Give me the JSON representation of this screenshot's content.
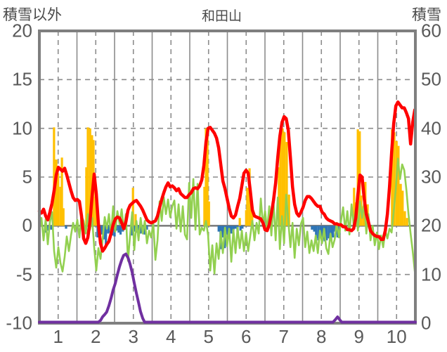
{
  "header": {
    "left_label": "積雪以外",
    "title": "和田山",
    "right_label": "積雪"
  },
  "chart_data": {
    "type": "line",
    "title": "和田山",
    "left_axis": {
      "label": "積雪以外",
      "ticks": [
        "20",
        "15",
        "10",
        "5",
        "0",
        "-5",
        "-10"
      ],
      "tick_values": [
        20,
        15,
        10,
        5,
        0,
        -5,
        -10
      ],
      "range": [
        -10,
        20
      ]
    },
    "right_axis": {
      "label": "積雪",
      "ticks": [
        "60",
        "50",
        "40",
        "30",
        "20",
        "10",
        "0"
      ],
      "tick_values": [
        60,
        50,
        40,
        30,
        20,
        10,
        0
      ],
      "range": [
        0,
        60
      ]
    },
    "x_axis": {
      "ticks": [
        "1",
        "2",
        "3",
        "4",
        "5",
        "6",
        "7",
        "8",
        "9",
        "10"
      ],
      "tick_positions": [
        0.5,
        1.5,
        2.5,
        3.5,
        4.5,
        5.5,
        6.5,
        7.5,
        8.5,
        9.5
      ],
      "range": [
        0,
        10
      ]
    },
    "grid": {
      "h_dashed_levels": [
        15,
        10,
        5,
        -5
      ],
      "zero_level": 0,
      "v_solid_months": [
        1,
        2,
        3,
        4,
        5,
        6,
        7,
        8,
        9
      ],
      "v_dashed_months": [
        0.5,
        1.5,
        2.5,
        3.5,
        4.5,
        5.5,
        6.5,
        7.5,
        8.5,
        9.5
      ]
    },
    "colors": {
      "red_line": "#FF0000",
      "green_line": "#92D050",
      "orange_bars": "#FFC000",
      "blue_bars": "#2E75B6",
      "purple_line": "#7030A0",
      "grid": "#8C8C8C",
      "border": "#7F7F7F",
      "tick_text": "#595959",
      "title_text": "#4A4A4A"
    },
    "series": [
      {
        "name": "red-line",
        "type": "line",
        "axis": "left",
        "color": "#FF0000",
        "stroke_width": 4.5,
        "x_start": 0,
        "x_step": 0.0561,
        "values": [
          1.5,
          1.3,
          1.7,
          1.0,
          0.6,
          1.4,
          2.3,
          3.6,
          5.2,
          6.0,
          5.8,
          5.6,
          5.9,
          5.2,
          4.4,
          3.6,
          2.9,
          2.6,
          2.7,
          2.5,
          1.0,
          -1.3,
          -1.8,
          -1.2,
          0.4,
          3.0,
          5.3,
          3.3,
          0.2,
          -1.8,
          -2.6,
          -2.3,
          -1.9,
          -1.6,
          -0.8,
          0.1,
          0.7,
          0.9,
          0.8,
          0.3,
          -0.3,
          0.4,
          1.6,
          2.1,
          2.3,
          2.5,
          2.6,
          2.3,
          2.0,
          1.6,
          1.1,
          0.6,
          0.4,
          0.3,
          0.4,
          0.5,
          1.0,
          1.9,
          2.7,
          3.4,
          4.0,
          4.4,
          4.0,
          4.1,
          3.9,
          3.6,
          3.8,
          3.3,
          3.1,
          2.9,
          2.9,
          3.2,
          3.4,
          3.8,
          3.9,
          3.8,
          4.1,
          4.7,
          6.2,
          8.6,
          10.0,
          10.1,
          9.8,
          9.5,
          9.0,
          8.0,
          6.3,
          4.6,
          3.8,
          2.8,
          1.8,
          1.0,
          0.8,
          1.1,
          2.0,
          2.8,
          4.1,
          5.4,
          5.7,
          5.4,
          3.6,
          1.6,
          1.0,
          0.9,
          0.8,
          0.7,
          0.3,
          -0.4,
          -0.5,
          0.1,
          1.2,
          2.6,
          4.4,
          7.0,
          9.2,
          10.6,
          11.2,
          11.0,
          9.8,
          7.0,
          4.0,
          2.2,
          1.3,
          1.0,
          1.4,
          1.9,
          2.6,
          3.0,
          3.0,
          2.8,
          2.5,
          2.2,
          2.0,
          2.0,
          1.4,
          1.2,
          0.8,
          0.6,
          0.5,
          0.4,
          0.2,
          0.2,
          0.1,
          0.1,
          -0.1,
          -0.1,
          -0.4,
          -0.4,
          -0.5,
          -0.3,
          0.8,
          3.2,
          5.2,
          5.0,
          2.8,
          1.2,
          0.4,
          -0.5,
          -0.8,
          -1.0,
          -1.1,
          -1.1,
          -1.4,
          -1.4,
          -0.5,
          1.2,
          4.0,
          7.5,
          10.5,
          12.3,
          12.7,
          12.4,
          12.1,
          12.1,
          11.6,
          11.0,
          8.4,
          10.6,
          11.9
        ]
      },
      {
        "name": "green-line",
        "type": "line",
        "axis": "left",
        "color": "#92D050",
        "stroke_width": 2.6,
        "x_start": 0,
        "x_step": 0.0561,
        "values": [
          -0.5,
          0.8,
          -1.5,
          0.7,
          -1.9,
          0.4,
          1.4,
          -2.6,
          -4.3,
          -2.2,
          -3.8,
          -4.7,
          -3.2,
          -1.1,
          -2.6,
          -1.0,
          0.3,
          -0.6,
          0.6,
          -1.2,
          1.0,
          0.5,
          -0.8,
          1.2,
          -0.4,
          0.8,
          -2.2,
          -4.6,
          -2.3,
          -3.4,
          -1.4,
          0.9,
          -0.3,
          1.2,
          -1.0,
          2.0,
          -0.6,
          1.5,
          0.2,
          1.7,
          -0.4,
          1.2,
          -3.6,
          -1.0,
          1.4,
          -2.5,
          0.5,
          -1.5,
          0.8,
          -0.8,
          0.5,
          -1.8,
          -0.5,
          -1.2,
          0.3,
          -3.5,
          -1.5,
          2.5,
          0.5,
          2.9,
          1.2,
          2.7,
          0.9,
          2.0,
          2.6,
          -0.3,
          2.2,
          -0.6,
          2.0,
          -0.9,
          -1.4,
          4.4,
          0.8,
          4.8,
          -0.4,
          4.3,
          -0.9,
          -0.2,
          -0.5,
          0.5,
          -1.0,
          -4.6,
          -2.0,
          -4.9,
          -1.8,
          -3.4,
          -0.6,
          -2.8,
          -0.2,
          -2.1,
          -0.3,
          -3.7,
          -0.4,
          -2.8,
          -0.2,
          -2.3,
          -0.5,
          -2.6,
          -0.8,
          -2.6,
          -1.0,
          0.5,
          -1.5,
          0.3,
          -0.8,
          2.8,
          0.0,
          1.5,
          -0.5,
          2.0,
          -1.0,
          2.5,
          -1.5,
          2.9,
          -2.4,
          1.0,
          -1.8,
          3.2,
          0.5,
          -2.2,
          0.3,
          -3.3,
          -0.3,
          -2.0,
          0.2,
          0.8,
          -2.2,
          -0.6,
          -2.8,
          -1.5,
          -2.6,
          -1.0,
          -2.8,
          -0.5,
          -1.8,
          -0.3,
          -2.3,
          -2.9,
          -0.8,
          -2.2,
          -1.4,
          0.3,
          -1.2,
          0.5,
          1.9,
          -0.5,
          1.5,
          -0.9,
          2.2,
          0.0,
          1.8,
          -0.5,
          2.5,
          0.8,
          2.4,
          -0.8,
          1.2,
          -1.5,
          0.0,
          -2.0,
          -0.7,
          -2.4,
          -1.0,
          -2.2,
          -0.5,
          -1.3,
          -0.3,
          -0.7,
          1.5,
          3.8,
          6.9,
          4.8,
          6.3,
          5.7,
          3.7,
          1.2,
          -0.8,
          -2.6,
          -4.7
        ]
      },
      {
        "name": "orange-bars",
        "type": "bar",
        "axis": "left",
        "color": "#FFC000",
        "bar_width": 3.2,
        "points": [
          [
            0.39,
            10.1
          ],
          [
            0.45,
            6.8
          ],
          [
            0.5,
            5.4
          ],
          [
            0.56,
            4.0
          ],
          [
            0.6,
            7.0
          ],
          [
            0.64,
            1.8
          ],
          [
            1.25,
            6.0
          ],
          [
            1.29,
            10.1
          ],
          [
            1.35,
            10.0
          ],
          [
            1.4,
            9.3
          ],
          [
            1.44,
            8.8
          ],
          [
            1.5,
            3.0
          ],
          [
            2.49,
            3.9
          ],
          [
            2.56,
            1.2
          ],
          [
            4.39,
            4.0
          ],
          [
            4.43,
            10.0
          ],
          [
            4.47,
            9.6
          ],
          [
            4.51,
            2.5
          ],
          [
            5.33,
            0.8
          ],
          [
            5.5,
            1.6
          ],
          [
            5.53,
            3.9
          ],
          [
            5.59,
            5.9
          ],
          [
            5.63,
            2.8
          ],
          [
            5.66,
            1.2
          ],
          [
            6.37,
            6.0
          ],
          [
            6.41,
            9.9
          ],
          [
            6.47,
            10.0
          ],
          [
            6.52,
            9.6
          ],
          [
            6.58,
            8.6
          ],
          [
            6.64,
            3.2
          ],
          [
            8.37,
            3.9
          ],
          [
            8.41,
            2.4
          ],
          [
            8.47,
            9.9
          ],
          [
            8.52,
            9.7
          ],
          [
            8.56,
            3.1
          ],
          [
            8.62,
            2.0
          ],
          [
            8.67,
            4.5
          ],
          [
            8.73,
            2.2
          ],
          [
            9.38,
            9.9
          ],
          [
            9.44,
            9.6
          ],
          [
            9.5,
            8.7
          ],
          [
            9.55,
            8.2
          ],
          [
            9.61,
            4.3
          ],
          [
            9.66,
            3.6
          ],
          [
            9.72,
            1.5
          ],
          [
            9.78,
            0.8
          ]
        ]
      },
      {
        "name": "blue-bars",
        "type": "bar",
        "axis": "left",
        "color": "#2E75B6",
        "bar_width": 3.2,
        "points": [
          [
            0.15,
            -0.7
          ],
          [
            0.21,
            -0.5
          ],
          [
            0.32,
            -0.4
          ],
          [
            0.71,
            -0.3
          ],
          [
            1.55,
            -1.2
          ],
          [
            1.61,
            -0.6
          ],
          [
            1.66,
            -0.9
          ],
          [
            1.72,
            -1.4
          ],
          [
            1.77,
            -2.0
          ],
          [
            1.83,
            -0.8
          ],
          [
            1.88,
            -0.7
          ],
          [
            1.94,
            -1.0
          ],
          [
            2.0,
            -1.1
          ],
          [
            2.05,
            -0.5
          ],
          [
            2.11,
            -0.7
          ],
          [
            2.16,
            -0.9
          ],
          [
            2.22,
            -0.6
          ],
          [
            2.28,
            -0.4
          ],
          [
            2.47,
            -1.0
          ],
          [
            2.52,
            -0.6
          ],
          [
            2.58,
            -0.7
          ],
          [
            2.64,
            -0.5
          ],
          [
            2.69,
            -0.8
          ],
          [
            2.75,
            -0.6
          ],
          [
            2.8,
            -0.9
          ],
          [
            2.86,
            -0.4
          ],
          [
            4.77,
            -0.6
          ],
          [
            4.82,
            -2.4
          ],
          [
            4.88,
            -1.2
          ],
          [
            4.93,
            -2.3
          ],
          [
            4.99,
            -0.9
          ],
          [
            5.05,
            -0.5
          ],
          [
            5.1,
            -0.8
          ],
          [
            5.16,
            -0.5
          ],
          [
            5.21,
            -0.3
          ],
          [
            5.27,
            -0.6
          ],
          [
            5.35,
            -0.5
          ],
          [
            5.4,
            -0.3
          ],
          [
            7.25,
            -0.4
          ],
          [
            7.31,
            -0.6
          ],
          [
            7.36,
            -1.3
          ],
          [
            7.42,
            -1.5
          ],
          [
            7.48,
            -0.7
          ],
          [
            7.53,
            -1.4
          ],
          [
            7.59,
            -1.6
          ],
          [
            7.64,
            -1.5
          ],
          [
            7.7,
            -1.3
          ],
          [
            7.76,
            -1.55
          ],
          [
            7.81,
            -1.2
          ],
          [
            7.87,
            -0.6
          ],
          [
            7.93,
            -1.2
          ],
          [
            7.98,
            -0.9
          ],
          [
            8.13,
            -0.25
          ]
        ]
      },
      {
        "name": "purple-line",
        "type": "line",
        "axis": "right",
        "color": "#7030A0",
        "stroke_width": 4,
        "points": [
          [
            0,
            0
          ],
          [
            1.57,
            0
          ],
          [
            1.63,
            0.6
          ],
          [
            1.68,
            1.3
          ],
          [
            1.74,
            1.8
          ],
          [
            1.79,
            2.3
          ],
          [
            1.85,
            3.6
          ],
          [
            1.91,
            5.2
          ],
          [
            1.96,
            6.8
          ],
          [
            2.02,
            8.2
          ],
          [
            2.07,
            9.8
          ],
          [
            2.13,
            11.6
          ],
          [
            2.19,
            13.0
          ],
          [
            2.24,
            13.9
          ],
          [
            2.3,
            14.2
          ],
          [
            2.36,
            13.4
          ],
          [
            2.41,
            12.2
          ],
          [
            2.47,
            10.4
          ],
          [
            2.52,
            8.4
          ],
          [
            2.58,
            6.2
          ],
          [
            2.64,
            4.2
          ],
          [
            2.69,
            2.4
          ],
          [
            2.75,
            1.0
          ],
          [
            2.8,
            0.2
          ],
          [
            2.86,
            0
          ],
          [
            7.81,
            0
          ],
          [
            7.87,
            0.7
          ],
          [
            7.93,
            1.3
          ],
          [
            7.98,
            0.8
          ],
          [
            8.04,
            0
          ],
          [
            10,
            0
          ]
        ]
      }
    ]
  }
}
